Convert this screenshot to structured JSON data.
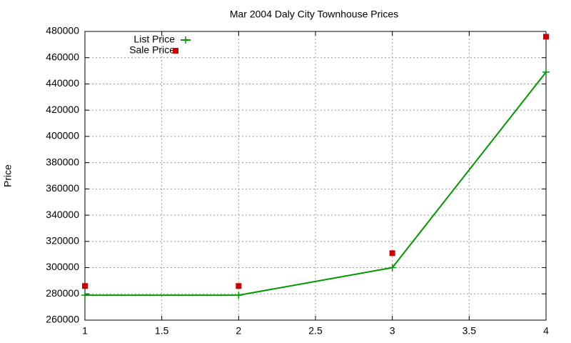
{
  "chart_data": {
    "type": "line",
    "title": "Mar 2004 Daly City Townhouse Prices",
    "y_label": "Price",
    "x": [
      1,
      2,
      3,
      4
    ],
    "series": [
      {
        "name": "List Price",
        "color": "#009900",
        "style": "linespoints",
        "values": [
          279000,
          279000,
          300000,
          449000
        ]
      },
      {
        "name": "Sale Price",
        "color": "#cc0000",
        "style": "points",
        "values": [
          286000,
          286000,
          311000,
          476000
        ]
      }
    ],
    "xlim": [
      1,
      4
    ],
    "xticks": [
      1,
      1.5,
      2,
      2.5,
      3,
      3.5,
      4
    ],
    "ylim": [
      260000,
      480000
    ],
    "yticks": [
      260000,
      280000,
      300000,
      320000,
      340000,
      360000,
      380000,
      400000,
      420000,
      440000,
      460000,
      480000
    ],
    "grid": true,
    "legend": "top-left"
  }
}
